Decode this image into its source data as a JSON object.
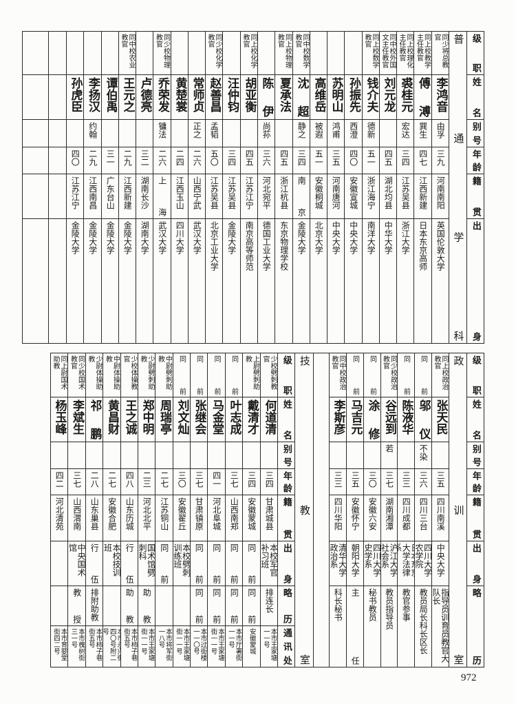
{
  "upper": {
    "section_title": "普通学科",
    "headers": [
      "级职",
      "姓名",
      "别号",
      "年龄",
      "籍贯",
      "出身"
    ],
    "records": [
      {
        "rank": "同少将总教官",
        "name": "李鸿音",
        "alias": "由孚",
        "age": "三九",
        "native": "河南南阳",
        "education": "英国伦敦大学"
      },
      {
        "rank": "同上校教学主任教官",
        "name": "傅溥",
        "alias": "巽生",
        "age": "四七",
        "native": "江西新建",
        "education": "日本东京高师"
      },
      {
        "rank": "同上校理化主任教官",
        "name": "裘桂元",
        "alias": "宏达",
        "age": "三四",
        "native": "江苏吴县",
        "education": "浙江大学"
      },
      {
        "rank": "同中校外国文主任教官",
        "name": "刘元龙",
        "alias": "",
        "age": "四五",
        "native": "湖北均县",
        "education": "中华大学"
      },
      {
        "rank": "同上校数学教官",
        "name": "钱介夫",
        "alias": "德新",
        "age": "五一",
        "native": "浙江海宁",
        "education": "南洋大学"
      },
      {
        "rank": "",
        "name": "孙振先",
        "alias": "西澄",
        "age": "四〇",
        "native": "安徽宣城",
        "education": "中央大学"
      },
      {
        "rank": "",
        "name": "苏明山",
        "alias": "鸿甫",
        "age": "三五",
        "native": "河南唐河",
        "education": "中央大学"
      },
      {
        "rank": "",
        "name": "高维岳",
        "alias": "被遐",
        "age": "五一",
        "native": "安徽桐城",
        "education": "北京大学"
      },
      {
        "rank": "同中校数学教官",
        "name": "沈超",
        "alias": "静之",
        "age": "三四",
        "native": "南京",
        "education": "金陵大学"
      },
      {
        "rank": "同上校物理教官",
        "name": "夏承法",
        "alias": "",
        "age": "四五",
        "native": "浙江杭县",
        "education": "东京物理学校"
      },
      {
        "rank": "",
        "name": "陈伊",
        "alias": "尚荪",
        "age": "三六",
        "native": "河北宛平",
        "education": "德国工业大学"
      },
      {
        "rank": "同上校化学教官",
        "name": "胡亚衡",
        "alias": "",
        "age": "四五",
        "native": "江苏江宁",
        "education": "南京高等师范"
      },
      {
        "rank": "",
        "name": "汪仲钧",
        "alias": "",
        "age": "三四",
        "native": "江苏吴县",
        "education": "金陵大学"
      },
      {
        "rank": "同少校化学教官",
        "name": "赵善昌",
        "alias": "孟韬",
        "age": "五〇",
        "native": "江苏吴县",
        "education": "北京工业大学"
      },
      {
        "rank": "",
        "name": "常师贞",
        "alias": "正之",
        "age": "二六",
        "native": "山西宁武",
        "education": "武汉大学"
      },
      {
        "rank": "",
        "name": "黄楚裳",
        "alias": "",
        "age": "二四",
        "native": "江西玉山",
        "education": "四川大学"
      },
      {
        "rank": "同少校物理教官",
        "name": "乔荣发",
        "alias": "镛法",
        "age": "二六",
        "native": "上海",
        "education": "武汉大学"
      },
      {
        "rank": "",
        "name": "卢德亮",
        "alias": "",
        "age": "三二",
        "native": "湖南长沙",
        "education": "湖南大学"
      },
      {
        "rank": "同中校农业教官",
        "name": "王元之",
        "alias": "",
        "age": "二九",
        "native": "江西新建",
        "education": "金陵大学"
      },
      {
        "rank": "",
        "name": "谭伯禹",
        "alias": "",
        "age": "三一",
        "native": "广东台山",
        "education": "金陵大学"
      },
      {
        "rank": "",
        "name": "李扬汉",
        "alias": "约翰",
        "age": "二九",
        "native": "江西南昌",
        "education": "金陵大学"
      },
      {
        "rank": "",
        "name": "孙虎臣",
        "alias": "",
        "age": "四〇",
        "native": "江苏江宁",
        "education": "金陵大学"
      }
    ]
  },
  "political": {
    "section_title": "政训室",
    "headers": [
      "级职",
      "姓名",
      "别号",
      "年龄",
      "籍贯",
      "出身",
      "略历"
    ],
    "records": [
      {
        "rank": "同上校政治教官",
        "name": "张天民",
        "alias": "",
        "age": "三五",
        "native": "四川南溪",
        "education": "中央大学",
        "history": "指导员训育员教官大队长"
      },
      {
        "rank": "同前",
        "name": "邬仪",
        "alias": "不染",
        "age": "三六",
        "native": "四川三台",
        "education": "四川大学农学院",
        "history": "教员局长科长区长"
      },
      {
        "rank": "同前",
        "name": "陈液华",
        "alias": "",
        "age": "三三",
        "native": "四川成都",
        "education": "日本东京大学法律系",
        "history": "教官参事"
      },
      {
        "rank": "同少校政治教官",
        "name": "谷远到",
        "alias": "若",
        "age": "三七",
        "native": "湖南湘潭",
        "education": "沪江大学社会系",
        "history": "教员指导员"
      },
      {
        "rank": "同前",
        "name": "涂修",
        "alias": "",
        "age": "三〇",
        "native": "安徽六安",
        "education": "四川大学史学系",
        "history": "秘书教员"
      },
      {
        "rank": "同前",
        "name": "马吉元",
        "alias": "",
        "age": "三五",
        "native": "安徽怀宁",
        "education": "朝阳大学",
        "history": "主任"
      },
      {
        "rank": "同中校政治教官",
        "name": "李斯彦",
        "alias": "",
        "age": "三三",
        "native": "四川华阳",
        "education": "清华大学政治系",
        "history": "科长秘书"
      }
    ]
  },
  "technical": {
    "section_title": "技教室",
    "headers": [
      "级职",
      "姓名",
      "别号",
      "年龄",
      "籍贯",
      "出身",
      "略历",
      "通讯处"
    ],
    "records": [
      {
        "rank": "少校劈刺教官",
        "name": "何道清",
        "alias": "",
        "age": "三四",
        "native": "甘肃城县",
        "education": "本校军官补习班",
        "history": "排连长",
        "address": "本市王家塘一一号"
      },
      {
        "rank": "上尉劈刺助教",
        "name": "戴清才",
        "alias": "",
        "age": "三四",
        "native": "安徽蒙城",
        "education": "同前",
        "history": "同前",
        "address": "安徽蒙城"
      },
      {
        "rank": "同前",
        "name": "叶志成",
        "alias": "",
        "age": "三七",
        "native": "山西南郑",
        "education": "同前",
        "history": "同前",
        "address": "本市厅署街一一号"
      },
      {
        "rank": "同前",
        "name": "马金堂",
        "alias": "",
        "age": "四一",
        "native": "河北阜城",
        "education": "同前",
        "history": "同前",
        "address": "本市王家塘街一一号"
      },
      {
        "rank": "同前",
        "name": "张继会",
        "alias": "",
        "age": "三七",
        "native": "甘肃镇原",
        "education": "同前",
        "history": "同前",
        "address": "本市过街楼一一〇号"
      },
      {
        "rank": "同前",
        "name": "刘文灿",
        "alias": "",
        "age": "三〇",
        "native": "安徽翟丘",
        "education": "本校劈刺训练班",
        "history": "",
        "address": "本市王家塘街一一号"
      },
      {
        "rank": "中尉劈刺助教",
        "name": "周瑞亭",
        "alias": "",
        "age": "二七",
        "native": "江苏铜山",
        "education": "同前",
        "history": "",
        "address": "本市将军街一八号"
      },
      {
        "rank": "少尉劈刺助教",
        "name": "郑中明",
        "alias": "",
        "age": "二三",
        "native": "河北北平",
        "education": "国术馆劈刺科",
        "history": "助教",
        "address": "本市王家塘街一一号"
      },
      {
        "rank": "少校体操教官",
        "name": "王之诚",
        "alias": "",
        "age": "四八",
        "native": "山东历城",
        "education": "行伍",
        "history": "助教",
        "address": "本市柿子巷街五号"
      },
      {
        "rank": "中尉体操助教",
        "name": "黄昌财",
        "alias": "",
        "age": "二七",
        "native": "安徽合肥",
        "education": "本校技训班",
        "history": "",
        "address": "本市永兴街四〇号附二号"
      },
      {
        "rank": "少尉体操助教",
        "name": "祁鹏",
        "alias": "",
        "age": "二八",
        "native": "山东巢县",
        "education": "行伍",
        "history": "排附助教",
        "address": "本市柿子巷街五号"
      },
      {
        "rank": "同少校国术教官",
        "name": "李斌生",
        "alias": "",
        "age": "三七",
        "native": "山西渭南",
        "education": "中央国术馆",
        "history": "教授",
        "address": "本市槐树街三一号"
      },
      {
        "rank": "同上尉国术助教",
        "name": "杨玉峰",
        "alias": "",
        "age": "四二",
        "native": "河北清苑",
        "education": "",
        "history": "",
        "address": "本市育婴堂街四二号"
      }
    ]
  },
  "page_number": "972"
}
